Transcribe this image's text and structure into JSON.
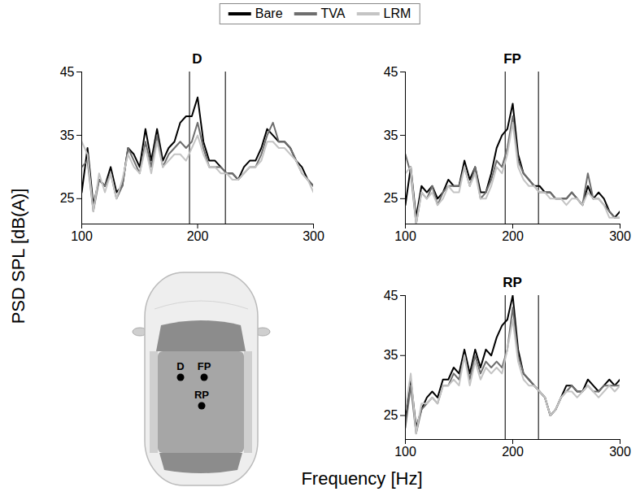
{
  "chart_data": [
    {
      "type": "line",
      "title": "D",
      "x": [
        100,
        105,
        110,
        115,
        120,
        125,
        130,
        135,
        140,
        145,
        150,
        155,
        160,
        165,
        170,
        175,
        180,
        185,
        190,
        195,
        200,
        205,
        210,
        215,
        220,
        225,
        230,
        235,
        240,
        245,
        250,
        255,
        260,
        265,
        270,
        275,
        280,
        285,
        290,
        295,
        300
      ],
      "xlim": [
        100,
        300
      ],
      "xticks": [
        100,
        200,
        300
      ],
      "ylim": [
        21,
        45
      ],
      "yticks": [
        25,
        35,
        45
      ],
      "vlines": [
        193,
        224
      ],
      "series": [
        {
          "name": "Bare",
          "color": "#000000",
          "values": [
            26,
            33,
            24,
            28,
            27,
            30,
            26,
            27,
            33,
            32,
            30,
            36,
            31,
            36,
            31,
            33,
            34,
            37,
            38,
            38,
            41,
            34,
            31,
            31,
            30,
            29,
            29,
            28,
            30,
            31,
            31,
            33,
            36,
            35,
            34,
            34,
            33,
            31,
            30,
            28,
            27
          ]
        },
        {
          "name": "TVA",
          "color": "#6e6e6e",
          "values": [
            30,
            31,
            23,
            28,
            27,
            29,
            25,
            27,
            33,
            31,
            29,
            34,
            30,
            35,
            30,
            32,
            33,
            34,
            33,
            34,
            37,
            33,
            30,
            30,
            30,
            29,
            29,
            28,
            29,
            30,
            30,
            32,
            35,
            37,
            34,
            34,
            33,
            31,
            29,
            28,
            27
          ]
        },
        {
          "name": "LRM",
          "color": "#c4c4c4",
          "values": [
            34,
            32,
            23,
            29,
            26,
            29,
            25,
            28,
            32,
            30,
            29,
            33,
            29,
            34,
            30,
            31,
            32,
            32,
            31,
            33,
            35,
            32,
            30,
            30,
            29,
            29,
            28,
            28,
            29,
            30,
            30,
            31,
            34,
            34,
            33,
            33,
            32,
            31,
            29,
            28,
            26
          ]
        }
      ]
    },
    {
      "type": "line",
      "title": "FP",
      "x": [
        100,
        105,
        110,
        115,
        120,
        125,
        130,
        135,
        140,
        145,
        150,
        155,
        160,
        165,
        170,
        175,
        180,
        185,
        190,
        195,
        200,
        205,
        210,
        215,
        220,
        225,
        230,
        235,
        240,
        245,
        250,
        255,
        260,
        265,
        270,
        275,
        280,
        285,
        290,
        295,
        300
      ],
      "xlim": [
        100,
        300
      ],
      "xticks": [
        100,
        200,
        300
      ],
      "ylim": [
        21,
        45
      ],
      "yticks": [
        25,
        35,
        45
      ],
      "vlines": [
        193,
        224
      ],
      "series": [
        {
          "name": "Bare",
          "color": "#000000",
          "values": [
            24,
            30,
            22,
            27,
            26,
            27,
            25,
            26,
            28,
            27,
            27,
            31,
            28,
            30,
            26,
            26,
            29,
            33,
            35,
            36,
            40,
            32,
            29,
            28,
            27,
            27,
            26,
            26,
            25,
            25,
            25,
            26,
            25,
            24,
            27,
            25,
            26,
            25,
            23,
            22,
            23
          ]
        },
        {
          "name": "TVA",
          "color": "#6e6e6e",
          "values": [
            32,
            29,
            21,
            26,
            25,
            27,
            24,
            26,
            27,
            27,
            27,
            30,
            27,
            30,
            25,
            26,
            28,
            31,
            30,
            33,
            38,
            31,
            29,
            28,
            27,
            26,
            26,
            26,
            25,
            25,
            25,
            26,
            25,
            24,
            29,
            25,
            25,
            24,
            23,
            22,
            22
          ]
        },
        {
          "name": "LRM",
          "color": "#c4c4c4",
          "values": [
            29,
            30,
            21,
            26,
            25,
            26,
            24,
            25,
            27,
            26,
            26,
            30,
            27,
            29,
            25,
            25,
            27,
            30,
            29,
            32,
            37,
            30,
            28,
            27,
            27,
            26,
            26,
            25,
            25,
            25,
            24,
            25,
            25,
            24,
            26,
            25,
            25,
            24,
            22,
            22,
            22
          ]
        }
      ]
    },
    {
      "type": "line",
      "title": "RP",
      "x": [
        100,
        105,
        110,
        115,
        120,
        125,
        130,
        135,
        140,
        145,
        150,
        155,
        160,
        165,
        170,
        175,
        180,
        185,
        190,
        195,
        200,
        205,
        210,
        215,
        220,
        225,
        230,
        235,
        240,
        245,
        250,
        255,
        260,
        265,
        270,
        275,
        280,
        285,
        290,
        295,
        300
      ],
      "xlim": [
        100,
        300
      ],
      "xticks": [
        100,
        200,
        300
      ],
      "ylim": [
        21,
        45
      ],
      "yticks": [
        25,
        35,
        45
      ],
      "vlines": [
        193,
        224
      ],
      "series": [
        {
          "name": "Bare",
          "color": "#000000",
          "values": [
            24,
            31,
            23,
            26,
            28,
            29,
            28,
            31,
            31,
            33,
            32,
            36,
            32,
            36,
            33,
            36,
            35,
            38,
            40,
            41,
            45,
            36,
            32,
            31,
            30,
            29,
            28,
            25,
            26,
            28,
            30,
            30,
            29,
            29,
            31,
            30,
            29,
            30,
            31,
            30,
            31
          ]
        },
        {
          "name": "TVA",
          "color": "#6e6e6e",
          "values": [
            23,
            30,
            22,
            26,
            27,
            28,
            27,
            30,
            30,
            32,
            31,
            35,
            31,
            35,
            32,
            34,
            33,
            34,
            33,
            36,
            43,
            35,
            32,
            31,
            30,
            29,
            28,
            25,
            26,
            28,
            29,
            30,
            29,
            29,
            30,
            29,
            29,
            30,
            30,
            30,
            30
          ]
        },
        {
          "name": "LRM",
          "color": "#c4c4c4",
          "values": [
            26,
            32,
            22,
            27,
            27,
            28,
            27,
            30,
            30,
            31,
            30,
            35,
            30,
            34,
            31,
            33,
            32,
            33,
            32,
            36,
            41,
            34,
            31,
            30,
            30,
            29,
            28,
            25,
            26,
            28,
            29,
            29,
            28,
            29,
            30,
            29,
            28,
            29,
            30,
            29,
            30
          ]
        }
      ]
    }
  ],
  "xlabel": "Frequency [Hz]",
  "ylabel": "PSD SPL [dB(A)]",
  "legend": "top",
  "diagram": {
    "points": [
      {
        "label": "D"
      },
      {
        "label": "FP"
      },
      {
        "label": "RP"
      }
    ]
  }
}
